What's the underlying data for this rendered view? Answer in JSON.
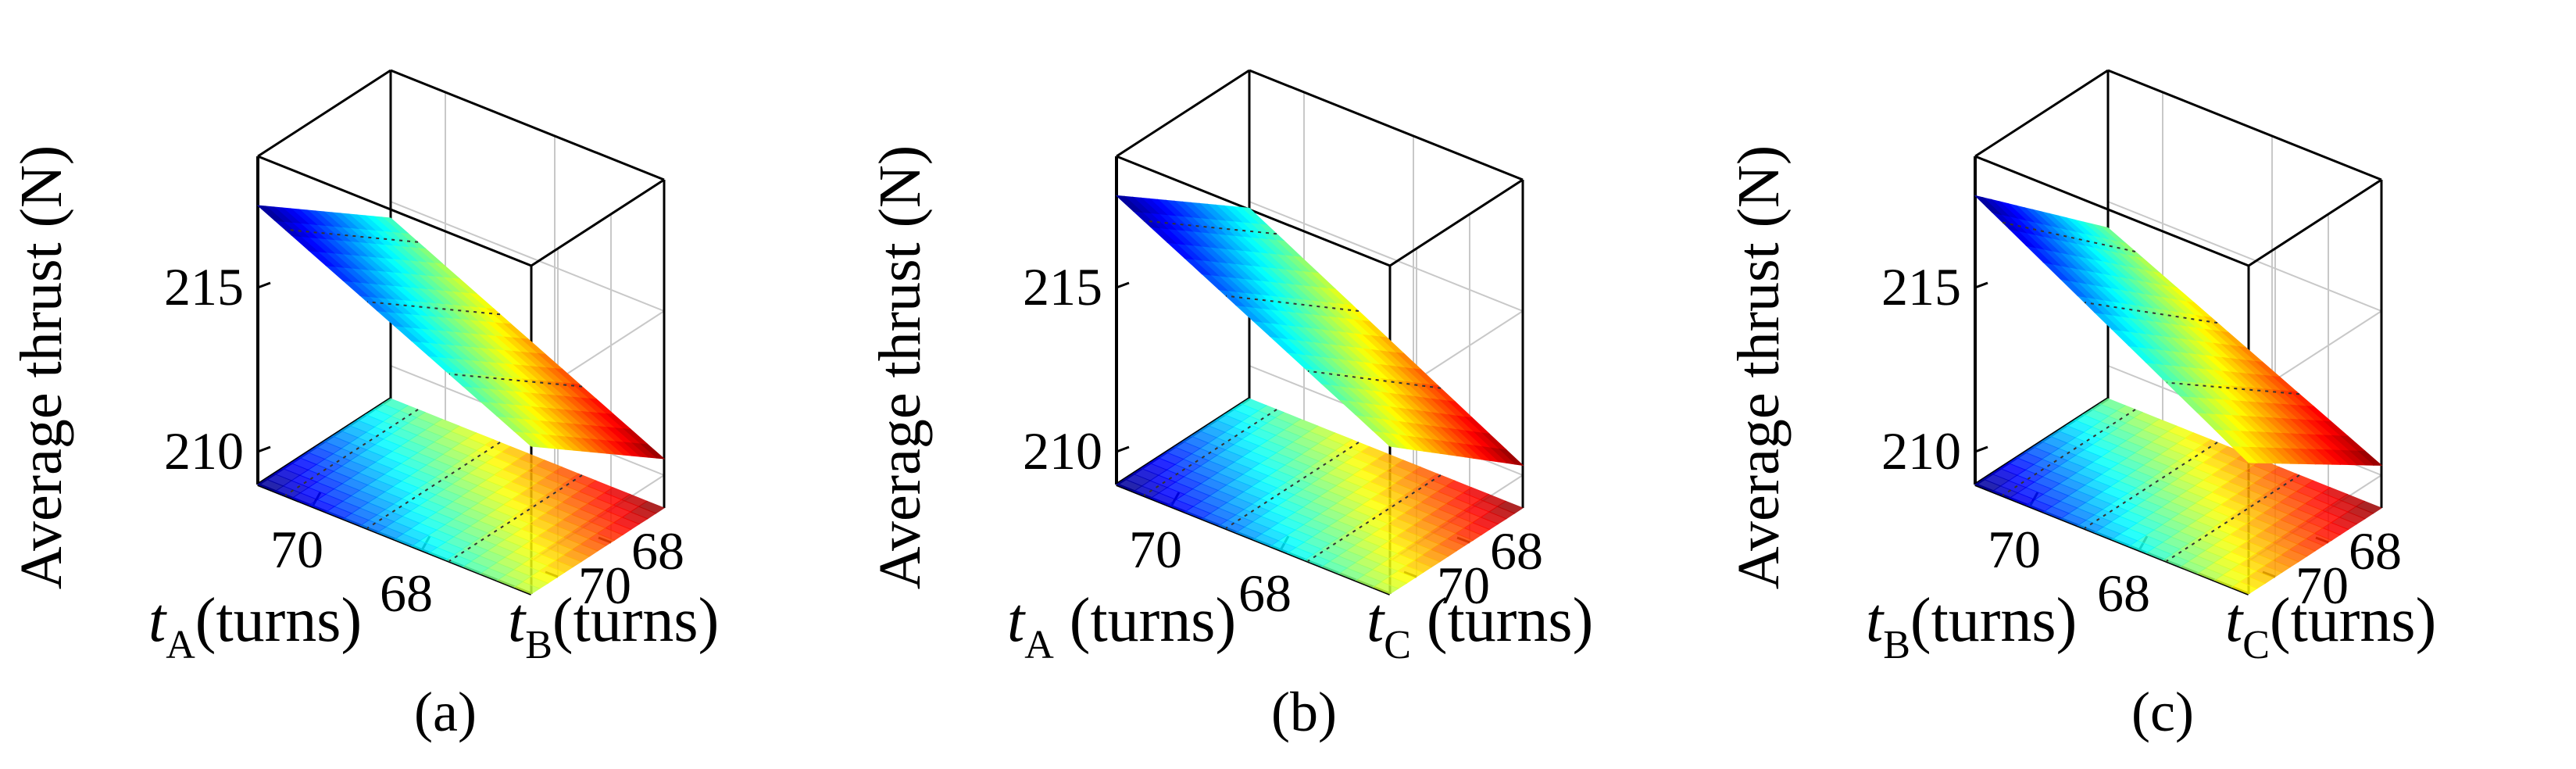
{
  "chart_data": [
    {
      "type": "surface3d",
      "panel_label": "(a)",
      "zlabel": "Average thrust (N)",
      "x_var": {
        "symbol": "t",
        "sub": "A",
        "unit": "(turns)"
      },
      "y_var": {
        "symbol": "t",
        "sub": "B",
        "unit": "(turns)"
      },
      "x_ticks": [
        "70",
        "68"
      ],
      "y_ticks": [
        "70",
        "68"
      ],
      "z_ticks": [
        "210",
        "215"
      ],
      "x_range": [
        66,
        71
      ],
      "y_range": [
        66,
        71
      ],
      "zlim": [
        209,
        219
      ],
      "grid": true,
      "projection_on_floor": true,
      "colormap": "jet",
      "surface_corners": {
        "x_high_y_high": 217.5,
        "x_high_y_low": 214.5,
        "x_low_y_high": 213.5,
        "x_low_y_low": 210.5
      }
    },
    {
      "type": "surface3d",
      "panel_label": "(b)",
      "zlabel": "Average thrust (N)",
      "x_var": {
        "symbol": "t",
        "sub": "A",
        "unit": " (turns)"
      },
      "y_var": {
        "symbol": "t",
        "sub": "C",
        "unit": " (turns)"
      },
      "x_ticks": [
        "70",
        "68"
      ],
      "y_ticks": [
        "70",
        "68"
      ],
      "z_ticks": [
        "210",
        "215"
      ],
      "x_range": [
        66,
        71
      ],
      "y_range": [
        66,
        71
      ],
      "zlim": [
        209,
        219
      ],
      "grid": true,
      "projection_on_floor": true,
      "colormap": "jet",
      "surface_corners": {
        "x_high_y_high": 217.8,
        "x_high_y_low": 214.8,
        "x_low_y_high": 213.5,
        "x_low_y_low": 210.3
      }
    },
    {
      "type": "surface3d",
      "panel_label": "(c)",
      "zlabel": "Average thrust (N)",
      "x_var": {
        "symbol": "t",
        "sub": "B",
        "unit": "(turns)"
      },
      "y_var": {
        "symbol": "t",
        "sub": "C",
        "unit": "(turns)"
      },
      "x_ticks": [
        "70",
        "68"
      ],
      "y_ticks": [
        "70",
        "68"
      ],
      "z_ticks": [
        "210",
        "215"
      ],
      "x_range": [
        66,
        71
      ],
      "y_range": [
        66,
        71
      ],
      "zlim": [
        209,
        219
      ],
      "grid": true,
      "projection_on_floor": true,
      "colormap": "jet",
      "surface_corners": {
        "x_high_y_high": 217.8,
        "x_high_y_low": 214.2,
        "x_low_y_high": 213.0,
        "x_low_y_low": 210.3
      }
    }
  ]
}
